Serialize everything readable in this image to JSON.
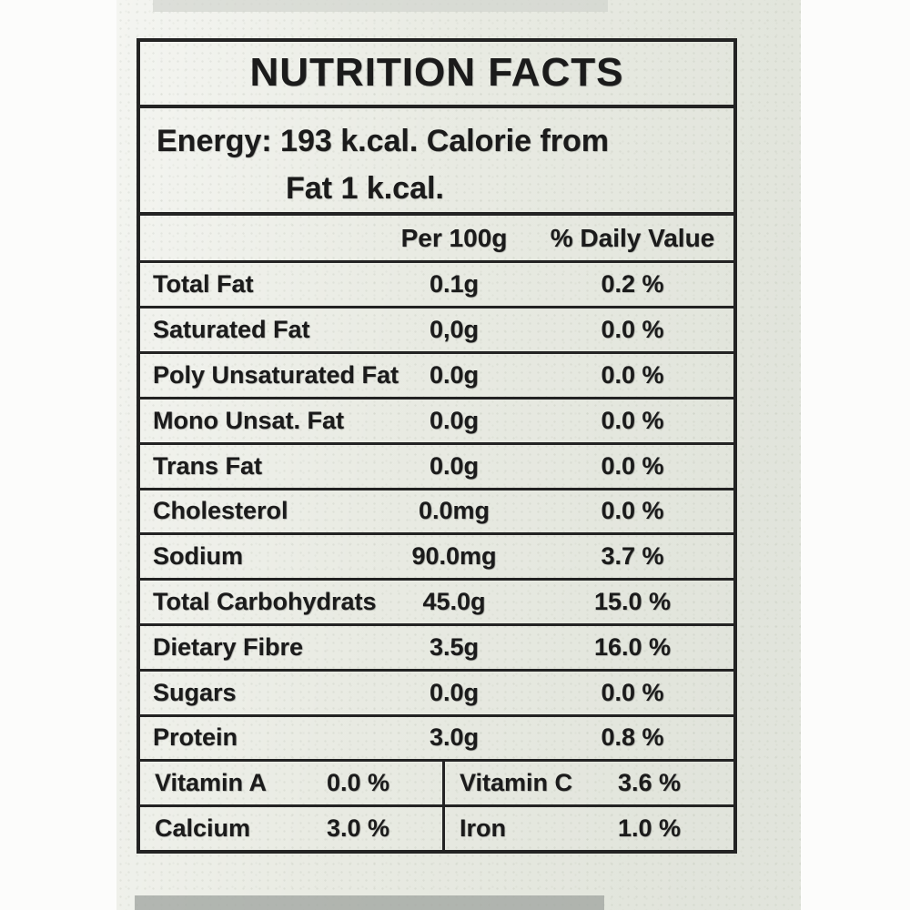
{
  "photo": {
    "paper_color": "#e9ebe3",
    "ink_color": "#1b1b1b"
  },
  "label": {
    "title": "NUTRITION FACTS",
    "energy_line1": "Energy:  193 k.cal. Calorie from",
    "energy_line2": "Fat 1 k.cal.",
    "header": {
      "per": "Per 100g",
      "daily": "% Daily Value"
    },
    "rows": [
      {
        "name": "Total Fat",
        "amount": "0.1g",
        "daily": "0.2 %"
      },
      {
        "name": "Saturated Fat",
        "amount": "0,0g",
        "daily": "0.0 %"
      },
      {
        "name": "Poly Unsaturated Fat",
        "amount": "0.0g",
        "daily": "0.0 %"
      },
      {
        "name": "Mono Unsat. Fat",
        "amount": "0.0g",
        "daily": "0.0 %"
      },
      {
        "name": "Trans Fat",
        "amount": "0.0g",
        "daily": "0.0 %"
      },
      {
        "name": "Cholesterol",
        "amount": "0.0mg",
        "daily": "0.0 %"
      },
      {
        "name": "Sodium",
        "amount": "90.0mg",
        "daily": "3.7 %"
      },
      {
        "name": "Total Carbohydrats",
        "amount": "45.0g",
        "daily": "15.0 %"
      },
      {
        "name": "Dietary Fibre",
        "amount": "3.5g",
        "daily": "16.0 %"
      },
      {
        "name": "Sugars",
        "amount": "0.0g",
        "daily": "0.0 %"
      },
      {
        "name": "Protein",
        "amount": "3.0g",
        "daily": "0.8 %"
      }
    ],
    "micros": [
      {
        "left_name": "Vitamin A",
        "left_value": "0.0 %",
        "right_name": "Vitamin C",
        "right_value": "3.6 %"
      },
      {
        "left_name": "Calcium",
        "left_value": "3.0 %",
        "right_name": "Iron",
        "right_value": "1.0 %"
      }
    ]
  }
}
